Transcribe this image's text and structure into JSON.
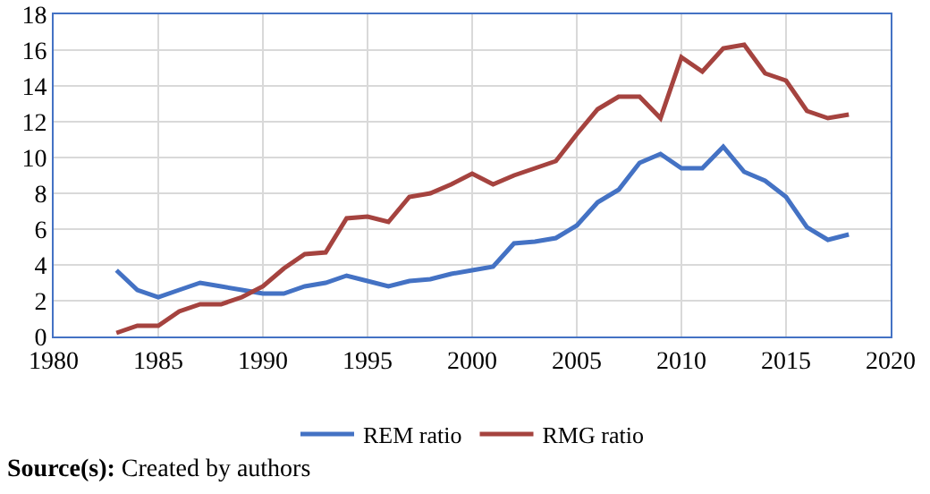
{
  "chart_data": {
    "type": "line",
    "x": [
      1983,
      1984,
      1985,
      1986,
      1987,
      1988,
      1989,
      1990,
      1991,
      1992,
      1993,
      1994,
      1995,
      1996,
      1997,
      1998,
      1999,
      2000,
      2001,
      2002,
      2003,
      2004,
      2005,
      2006,
      2007,
      2008,
      2009,
      2010,
      2011,
      2012,
      2013,
      2014,
      2015,
      2016,
      2017,
      2018
    ],
    "series": [
      {
        "name": "REM ratio",
        "color": "#4472c4",
        "values": [
          3.7,
          2.6,
          2.2,
          2.6,
          3.0,
          2.8,
          2.6,
          2.4,
          2.4,
          2.8,
          3.0,
          3.4,
          3.1,
          2.8,
          3.1,
          3.2,
          3.5,
          3.7,
          3.9,
          5.2,
          5.3,
          5.5,
          6.2,
          7.5,
          8.2,
          9.7,
          10.2,
          9.4,
          9.4,
          10.6,
          9.2,
          8.7,
          7.8,
          6.1,
          5.4,
          5.7
        ]
      },
      {
        "name": "RMG ratio",
        "color": "#a5433f",
        "values": [
          0.2,
          0.6,
          0.6,
          1.4,
          1.8,
          1.8,
          2.2,
          2.8,
          3.8,
          4.6,
          4.7,
          6.6,
          6.7,
          6.4,
          7.8,
          8.0,
          8.5,
          9.1,
          8.5,
          9.0,
          9.4,
          9.8,
          11.3,
          12.7,
          13.4,
          13.4,
          12.2,
          15.6,
          14.8,
          16.1,
          16.3,
          14.7,
          14.3,
          12.6,
          12.2,
          12.4
        ]
      }
    ],
    "xlim": [
      1980,
      2020
    ],
    "xticks": [
      1980,
      1985,
      1990,
      1995,
      2000,
      2005,
      2010,
      2015,
      2020
    ],
    "ylim": [
      0,
      18
    ],
    "yticks": [
      0,
      2,
      4,
      6,
      8,
      10,
      12,
      14,
      16,
      18
    ],
    "grid": true,
    "legend": "bottom",
    "marker": "none",
    "line_style": "solid",
    "annotations": [
      "Source(s): Created by authors"
    ]
  }
}
